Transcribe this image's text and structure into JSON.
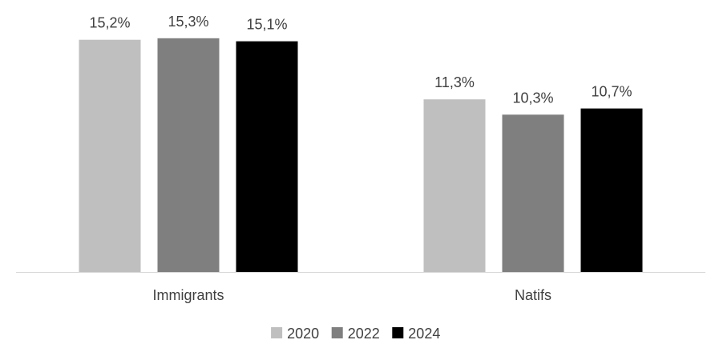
{
  "chart_data": {
    "type": "bar",
    "categories": [
      "Immigrants",
      "Natifs"
    ],
    "series": [
      {
        "name": "2020",
        "values": [
          15.2,
          11.3
        ],
        "labels": [
          "15,2%",
          "11,3%"
        ],
        "color": "#bfbfbf"
      },
      {
        "name": "2022",
        "values": [
          15.3,
          10.3
        ],
        "labels": [
          "15,3%",
          "10,3%"
        ],
        "color": "#7f7f7f"
      },
      {
        "name": "2024",
        "values": [
          15.1,
          10.7
        ],
        "labels": [
          "15,1%",
          "10,7%"
        ],
        "color": "#000000"
      }
    ],
    "title": "",
    "xlabel": "",
    "ylabel": "",
    "ylim": [
      0,
      16
    ],
    "grid": false,
    "legend_position": "bottom",
    "axis_color": "#d9d9d9",
    "label_color": "#404040"
  }
}
